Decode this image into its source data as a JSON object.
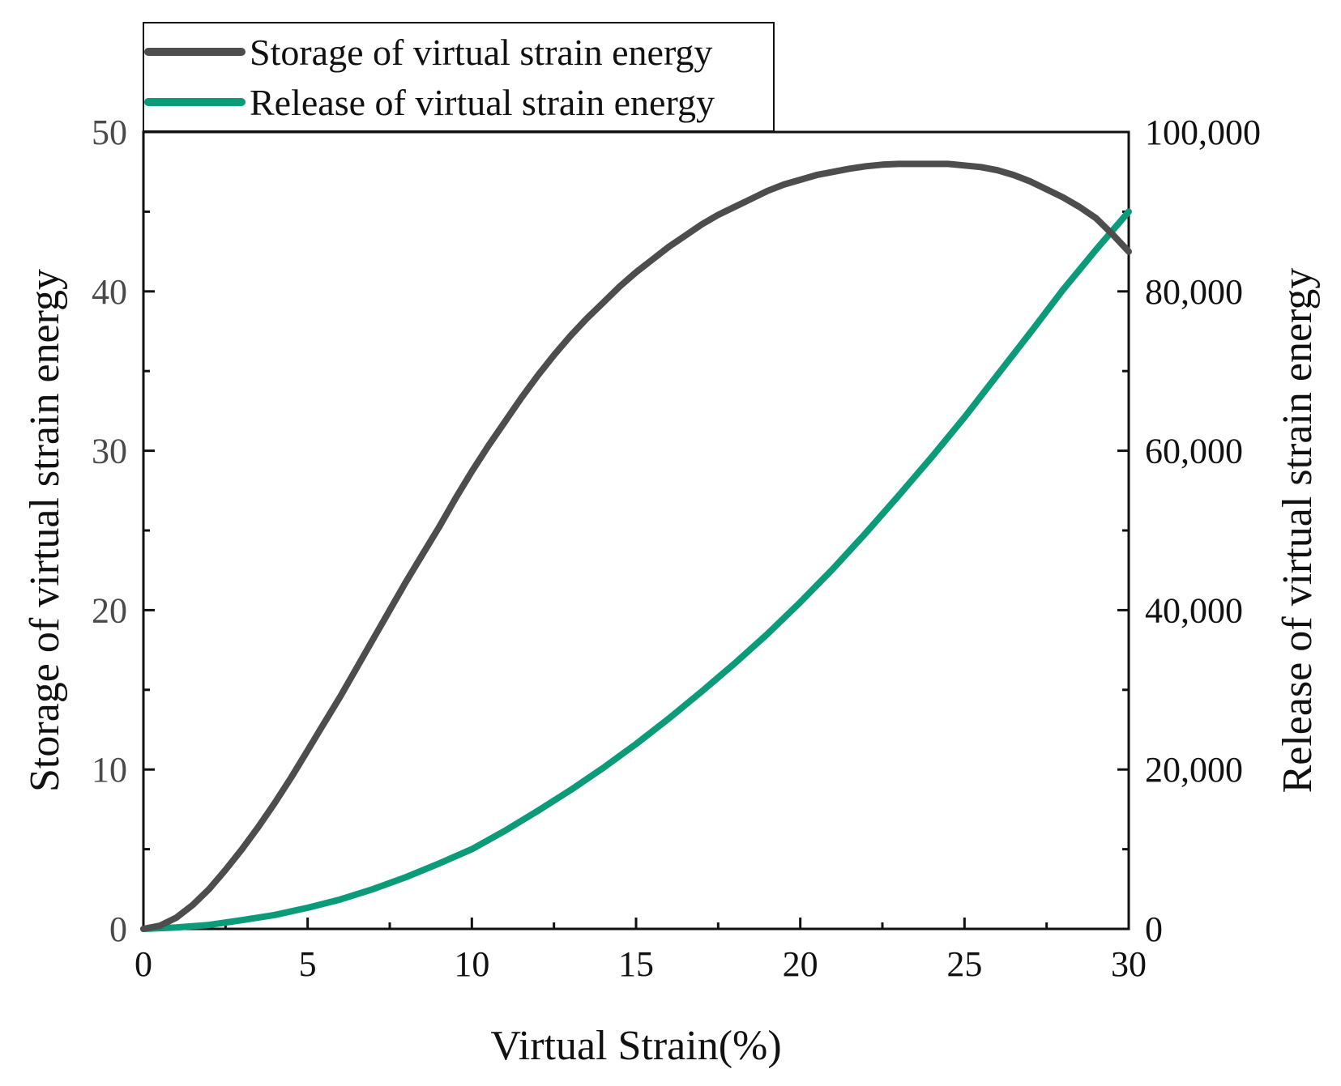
{
  "chart_data": {
    "type": "line",
    "title": "",
    "xlabel": "Virtual Strain(%)",
    "ylabel_left": "Storage of virtual strain energy",
    "ylabel_right": "Release of virtual strain energy",
    "xlim": [
      0,
      30
    ],
    "ylim_left": [
      0,
      50
    ],
    "ylim_right": [
      0,
      100000
    ],
    "x_ticks": [
      0,
      5,
      10,
      15,
      20,
      25,
      30
    ],
    "x_tick_labels": [
      "0",
      "5",
      "10",
      "15",
      "20",
      "25",
      "30"
    ],
    "y_left_ticks": [
      0,
      10,
      20,
      30,
      40,
      50
    ],
    "y_left_tick_labels": [
      "0",
      "10",
      "20",
      "30",
      "40",
      "50"
    ],
    "y_right_ticks": [
      0,
      20000,
      40000,
      60000,
      80000,
      100000
    ],
    "y_right_tick_labels": [
      "0",
      "20,000",
      "40,000",
      "60,000",
      "80,000",
      "100,000"
    ],
    "grid": false,
    "legend_position": "top-left",
    "series": [
      {
        "name": "Storage of virtual strain energy",
        "axis": "left",
        "color": "#4d4d4d",
        "x": [
          0,
          0.5,
          1,
          1.5,
          2,
          2.5,
          3,
          3.5,
          4,
          4.5,
          5,
          5.5,
          6,
          6.5,
          7,
          7.5,
          8,
          8.5,
          9,
          9.5,
          10,
          10.5,
          11,
          11.5,
          12,
          12.5,
          13,
          13.5,
          14,
          14.5,
          15,
          15.5,
          16,
          16.5,
          17,
          17.5,
          18,
          18.5,
          19,
          19.5,
          20,
          20.5,
          21,
          21.5,
          22,
          22.5,
          23,
          23.5,
          24,
          24.5,
          25,
          25.5,
          26,
          26.5,
          27,
          27.5,
          28,
          28.5,
          29,
          29.5,
          30
        ],
        "values": [
          0,
          0.2,
          0.7,
          1.5,
          2.5,
          3.7,
          5.0,
          6.4,
          7.9,
          9.5,
          11.2,
          12.9,
          14.6,
          16.4,
          18.2,
          20.0,
          21.8,
          23.5,
          25.2,
          27.0,
          28.7,
          30.3,
          31.8,
          33.3,
          34.7,
          36.0,
          37.2,
          38.3,
          39.3,
          40.3,
          41.2,
          42.0,
          42.8,
          43.5,
          44.2,
          44.8,
          45.3,
          45.8,
          46.3,
          46.7,
          47.0,
          47.3,
          47.5,
          47.7,
          47.85,
          47.95,
          48.0,
          48.0,
          48.0,
          48.0,
          47.9,
          47.8,
          47.6,
          47.3,
          46.9,
          46.4,
          45.9,
          45.3,
          44.6,
          43.6,
          42.5
        ]
      },
      {
        "name": "Release of virtual strain energy",
        "axis": "right",
        "color": "#0b9b78",
        "x": [
          0,
          1,
          2,
          3,
          4,
          5,
          6,
          7,
          8,
          9,
          10,
          11,
          12,
          13,
          14,
          15,
          16,
          17,
          18,
          19,
          20,
          21,
          22,
          23,
          24,
          25,
          26,
          27,
          28,
          29,
          30
        ],
        "values": [
          0,
          180,
          500,
          1100,
          1750,
          2650,
          3700,
          5000,
          6500,
          8200,
          10000,
          12300,
          14800,
          17400,
          20200,
          23200,
          26400,
          29800,
          33300,
          37000,
          41000,
          45200,
          49700,
          54400,
          59200,
          64200,
          69500,
          74800,
          80200,
          85200,
          90000
        ]
      }
    ]
  }
}
